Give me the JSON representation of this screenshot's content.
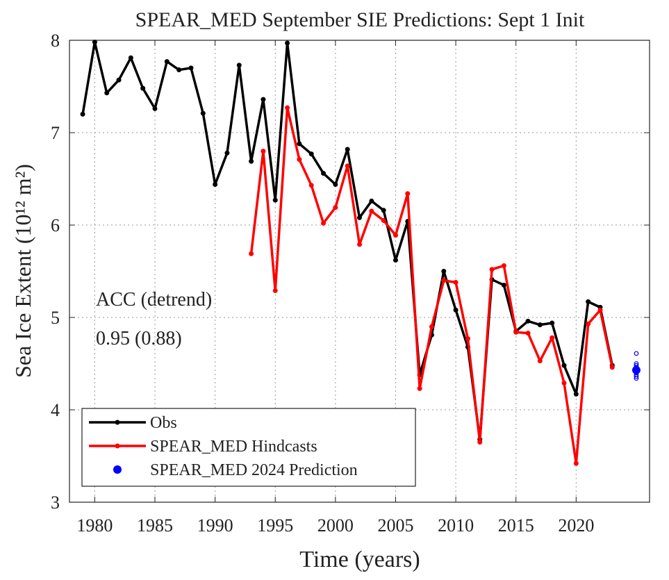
{
  "chart_data": {
    "type": "line",
    "title": "SPEAR_MED September SIE Predictions: Sept 1 Init",
    "xlabel": "Time (years)",
    "ylabel": "Sea Ice Extent (10¹² m²)",
    "annotations": [
      "ACC (detrend)",
      "0.95 (0.88)"
    ],
    "xlim": [
      1977.9,
      2026.1
    ],
    "ylim": [
      3,
      8
    ],
    "xticks": [
      1980,
      1985,
      1990,
      1995,
      2000,
      2005,
      2010,
      2015,
      2020
    ],
    "yticks": [
      3,
      4,
      5,
      6,
      7,
      8
    ],
    "grid": true,
    "legend": "lower left",
    "series": [
      {
        "name": "Obs",
        "color": "#000000",
        "line": true,
        "x": [
          1979,
          1980,
          1981,
          1982,
          1983,
          1984,
          1985,
          1986,
          1987,
          1988,
          1989,
          1990,
          1991,
          1992,
          1993,
          1994,
          1995,
          1996,
          1997,
          1998,
          1999,
          2000,
          2001,
          2002,
          2003,
          2004,
          2005,
          2006,
          2007,
          2008,
          2009,
          2010,
          2011,
          2012,
          2013,
          2014,
          2015,
          2016,
          2017,
          2018,
          2019,
          2020,
          2021,
          2022,
          2023
        ],
        "values": [
          7.2,
          7.98,
          7.43,
          7.57,
          7.81,
          7.48,
          7.26,
          7.77,
          7.68,
          7.7,
          7.21,
          6.44,
          6.78,
          7.73,
          6.69,
          7.36,
          6.27,
          7.97,
          6.88,
          6.77,
          6.56,
          6.44,
          6.82,
          6.08,
          6.26,
          6.16,
          5.62,
          6.04,
          4.38,
          4.81,
          5.5,
          5.08,
          4.68,
          3.68,
          5.41,
          5.35,
          4.85,
          4.96,
          4.92,
          4.94,
          4.48,
          4.17,
          5.17,
          5.11,
          4.48
        ]
      },
      {
        "name": "SPEAR_MED Hindcasts",
        "color": "#ff0000",
        "line": true,
        "x": [
          1993,
          1994,
          1995,
          1996,
          1997,
          1998,
          1999,
          2000,
          2001,
          2002,
          2003,
          2004,
          2005,
          2006,
          2007,
          2008,
          2009,
          2010,
          2011,
          2012,
          2013,
          2014,
          2015,
          2016,
          2017,
          2018,
          2019,
          2020,
          2021,
          2022,
          2023
        ],
        "values": [
          5.69,
          6.8,
          5.29,
          7.27,
          6.71,
          6.43,
          6.02,
          6.19,
          6.64,
          5.79,
          6.15,
          6.05,
          5.89,
          6.34,
          4.23,
          4.9,
          5.4,
          5.38,
          4.77,
          3.65,
          5.52,
          5.56,
          4.84,
          4.83,
          4.53,
          4.78,
          4.29,
          3.42,
          4.93,
          5.08,
          4.46
        ]
      },
      {
        "color": "#0000ff",
        "line": false,
        "filled": false,
        "x": [
          2025,
          2025,
          2025,
          2025,
          2025,
          2025,
          2025,
          2025,
          2025,
          2025,
          2025,
          2025,
          2025
        ],
        "values": [
          4.61,
          4.5,
          4.48,
          4.46,
          4.45,
          4.44,
          4.43,
          4.42,
          4.41,
          4.4,
          4.38,
          4.36,
          4.34
        ]
      },
      {
        "name": "SPEAR_MED 2024 Prediction",
        "color": "#0000ff",
        "line": false,
        "filled": true,
        "x": [
          2025
        ],
        "values": [
          4.43
        ]
      }
    ]
  }
}
